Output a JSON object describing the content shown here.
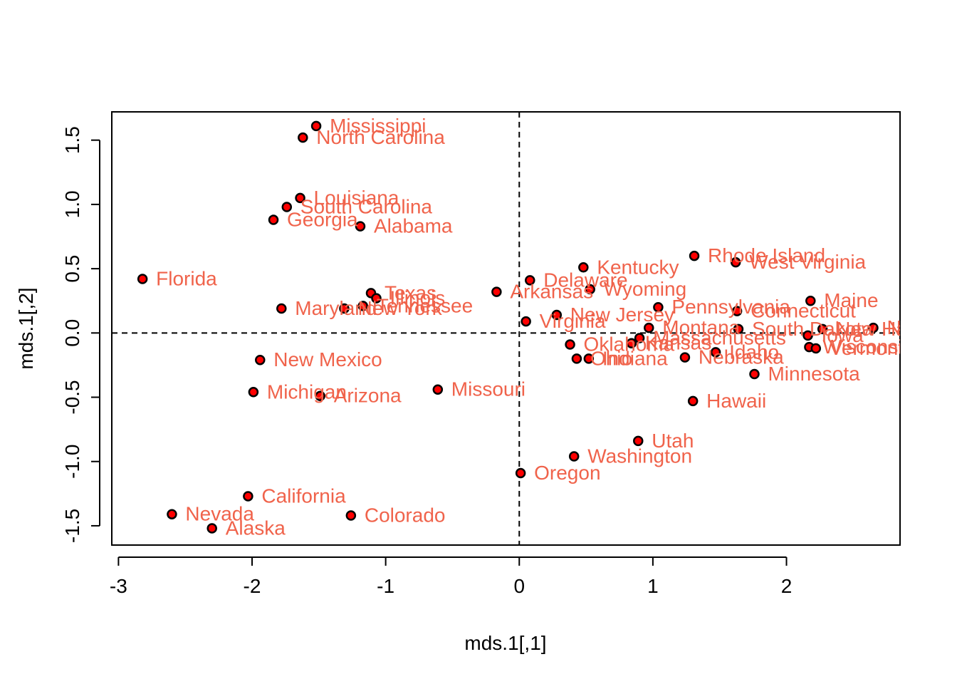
{
  "colors": {
    "point_fill": "#ff0000",
    "point_stroke": "#000000",
    "label": "#f0634b",
    "axis": "#000000"
  },
  "chart_data": {
    "type": "scatter",
    "title": "",
    "xlabel": "mds.1[,1]",
    "ylabel": "mds.1[,2]",
    "xlim": [
      -3.05,
      2.85
    ],
    "ylim": [
      -1.65,
      1.72
    ],
    "xticks": [
      -3,
      -2,
      -1,
      0,
      1,
      2
    ],
    "yticks": [
      -1.5,
      -1.0,
      -0.5,
      0.0,
      0.5,
      1.0,
      1.5
    ],
    "xtick_labels": [
      "-3",
      "-2",
      "-1",
      "0",
      "1",
      "2"
    ],
    "ytick_labels": [
      "-1.5",
      "-1.0",
      "-0.5",
      "0.0",
      "0.5",
      "1.0",
      "1.5"
    ],
    "reference_lines": {
      "h": 0,
      "v": 0,
      "style": "dashed"
    },
    "points": [
      {
        "label": "Mississippi",
        "x": -1.52,
        "y": 1.61
      },
      {
        "label": "North Carolina",
        "x": -1.62,
        "y": 1.52
      },
      {
        "label": "Louisiana",
        "x": -1.64,
        "y": 1.05
      },
      {
        "label": "South Carolina",
        "x": -1.74,
        "y": 0.98
      },
      {
        "label": "Georgia",
        "x": -1.84,
        "y": 0.88
      },
      {
        "label": "Alabama",
        "x": -1.19,
        "y": 0.83
      },
      {
        "label": "Florida",
        "x": -2.82,
        "y": 0.42
      },
      {
        "label": "Texas",
        "x": -1.11,
        "y": 0.31
      },
      {
        "label": "Illinois",
        "x": -1.07,
        "y": 0.27
      },
      {
        "label": "Tennessee",
        "x": -1.17,
        "y": 0.21
      },
      {
        "label": "New York",
        "x": -1.31,
        "y": 0.19
      },
      {
        "label": "Maryland",
        "x": -1.78,
        "y": 0.19
      },
      {
        "label": "Arkansas",
        "x": -0.17,
        "y": 0.32
      },
      {
        "label": "Delaware",
        "x": 0.08,
        "y": 0.41
      },
      {
        "label": "Kentucky",
        "x": 0.48,
        "y": 0.51
      },
      {
        "label": "Wyoming",
        "x": 0.53,
        "y": 0.34
      },
      {
        "label": "Virginia",
        "x": 0.05,
        "y": 0.09
      },
      {
        "label": "New Jersey",
        "x": 0.28,
        "y": 0.14
      },
      {
        "label": "Rhode Island",
        "x": 1.31,
        "y": 0.6
      },
      {
        "label": "West Virginia",
        "x": 1.62,
        "y": 0.55
      },
      {
        "label": "Pennsylvania",
        "x": 1.04,
        "y": 0.2
      },
      {
        "label": "Connecticut",
        "x": 1.63,
        "y": 0.17
      },
      {
        "label": "Maine",
        "x": 2.18,
        "y": 0.25
      },
      {
        "label": "Montana",
        "x": 0.97,
        "y": 0.04
      },
      {
        "label": "South Dakota",
        "x": 1.64,
        "y": 0.03
      },
      {
        "label": "New Hampshire",
        "x": 2.27,
        "y": 0.03
      },
      {
        "label": "North Dakota",
        "x": 2.65,
        "y": 0.04
      },
      {
        "label": "Massachusetts",
        "x": 0.9,
        "y": -0.04
      },
      {
        "label": "Kansas",
        "x": 0.84,
        "y": -0.08
      },
      {
        "label": "Oklahoma",
        "x": 0.38,
        "y": -0.09
      },
      {
        "label": "Ohio",
        "x": 0.43,
        "y": -0.2
      },
      {
        "label": "Indiana",
        "x": 0.52,
        "y": -0.2
      },
      {
        "label": "Iowa",
        "x": 2.16,
        "y": -0.02
      },
      {
        "label": "Wisconsin",
        "x": 2.17,
        "y": -0.11
      },
      {
        "label": "Vermont",
        "x": 2.22,
        "y": -0.12
      },
      {
        "label": "Nebraska",
        "x": 1.24,
        "y": -0.19
      },
      {
        "label": "Idaho",
        "x": 1.47,
        "y": -0.15
      },
      {
        "label": "Minnesota",
        "x": 1.76,
        "y": -0.32
      },
      {
        "label": "Hawaii",
        "x": 1.3,
        "y": -0.53
      },
      {
        "label": "New Mexico",
        "x": -1.94,
        "y": -0.21
      },
      {
        "label": "Michigan",
        "x": -1.99,
        "y": -0.46
      },
      {
        "label": "Arizona",
        "x": -1.49,
        "y": -0.49
      },
      {
        "label": "Missouri",
        "x": -0.61,
        "y": -0.44
      },
      {
        "label": "Utah",
        "x": 0.89,
        "y": -0.84
      },
      {
        "label": "Washington",
        "x": 0.41,
        "y": -0.96
      },
      {
        "label": "Oregon",
        "x": 0.01,
        "y": -1.09
      },
      {
        "label": "California",
        "x": -2.03,
        "y": -1.27
      },
      {
        "label": "Nevada",
        "x": -2.6,
        "y": -1.41
      },
      {
        "label": "Alaska",
        "x": -2.3,
        "y": -1.52
      },
      {
        "label": "Colorado",
        "x": -1.26,
        "y": -1.42
      }
    ]
  }
}
